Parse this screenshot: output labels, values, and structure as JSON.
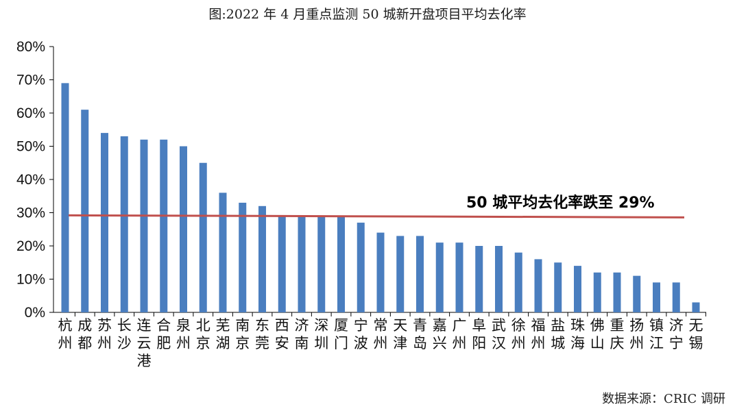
{
  "chart_data": {
    "type": "bar",
    "title": "图:2022 年 4 月重点监测 50 城新开盘项目平均去化率",
    "categories": [
      "杭州",
      "成都",
      "苏州",
      "长沙",
      "连云港",
      "合肥",
      "泉州",
      "北京",
      "芜湖",
      "南京",
      "东莞",
      "西安",
      "济南",
      "深圳",
      "厦门",
      "宁波",
      "常州",
      "天津",
      "青岛",
      "嘉兴",
      "广州",
      "阜阳",
      "武汉",
      "徐州",
      "福州",
      "盐城",
      "珠海",
      "佛山",
      "重庆",
      "扬州",
      "镇江",
      "济宁",
      "无锡"
    ],
    "values": [
      69,
      61,
      54,
      53,
      52,
      52,
      50,
      45,
      36,
      33,
      32,
      29,
      29,
      29,
      29,
      27,
      24,
      23,
      23,
      21,
      21,
      20,
      20,
      18,
      16,
      15,
      14,
      12,
      12,
      11,
      9,
      9,
      3
    ],
    "y_unit": "%",
    "ylim": [
      0,
      80
    ],
    "y_ticks": [
      "0%",
      "10%",
      "20%",
      "30%",
      "40%",
      "50%",
      "60%",
      "70%",
      "80%"
    ],
    "average_value": 29,
    "annotation": "50 城平均去化率跌至 29%",
    "bar_color": "#4a7ebf",
    "avg_line_color": "#c0504d",
    "grid": false,
    "legend": "none",
    "source": "数据来源：CRIC 调研"
  }
}
